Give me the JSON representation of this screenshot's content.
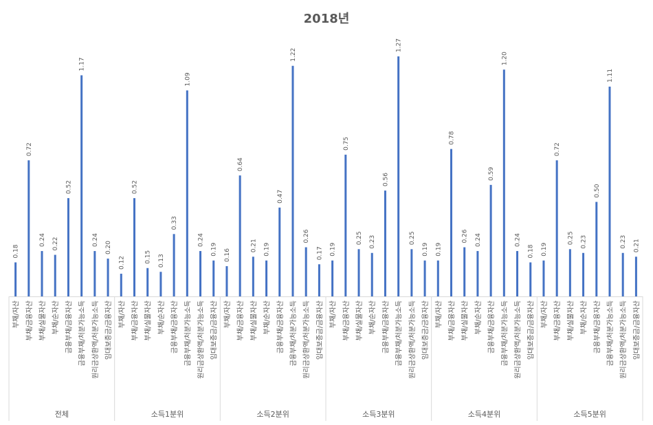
{
  "chart_data": {
    "type": "bar",
    "title": "2018년",
    "categories": [
      "부채/자산",
      "부채/금융자산",
      "부채/실물자산",
      "부채/순자산",
      "금융부채/금융자산",
      "금융부채/처분가능소득",
      "원리금상환액/처분가능소득",
      "임대보증금/금융자산"
    ],
    "groups": [
      "전체",
      "소득1분위",
      "소득2분위",
      "소득3분위",
      "소득4분위",
      "소득5분위"
    ],
    "series": [
      {
        "values": [
          0.18,
          0.72,
          0.24,
          0.22,
          0.52,
          1.17,
          0.24,
          0.2
        ]
      },
      {
        "values": [
          0.12,
          0.52,
          0.15,
          0.13,
          0.33,
          1.09,
          0.24,
          0.19
        ]
      },
      {
        "values": [
          0.16,
          0.64,
          0.21,
          0.19,
          0.47,
          1.22,
          0.26,
          0.17
        ]
      },
      {
        "values": [
          0.19,
          0.75,
          0.25,
          0.23,
          0.56,
          1.27,
          0.25,
          0.19
        ]
      },
      {
        "values": [
          0.19,
          0.78,
          0.26,
          0.24,
          0.59,
          1.2,
          0.24,
          0.18
        ]
      },
      {
        "values": [
          0.19,
          0.72,
          0.25,
          0.23,
          0.5,
          1.11,
          0.23,
          0.21
        ]
      }
    ],
    "ylim": [
      0,
      1.35
    ],
    "grid": false,
    "bar_color": "#4472C4",
    "text_color": "#595959",
    "axis_color": "#D9D9D9"
  }
}
